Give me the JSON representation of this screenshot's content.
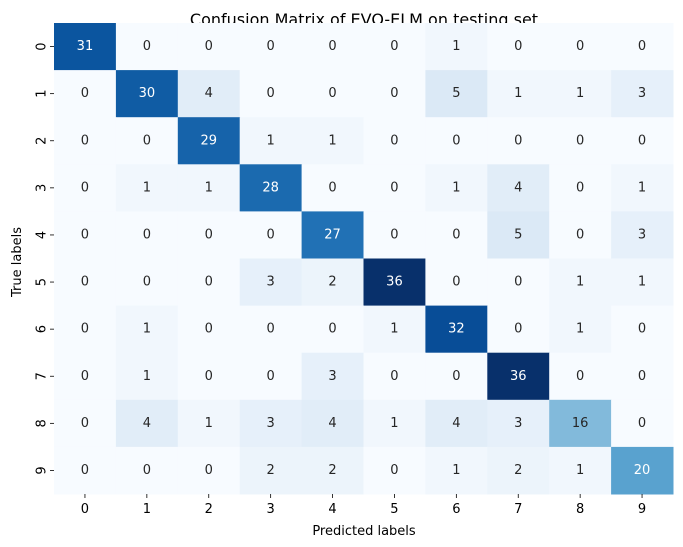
{
  "chart_data": {
    "type": "heatmap",
    "title": "Confusion Matrix of EVO-ELM on testing set",
    "xlabel": "Predicted labels",
    "ylabel": "True labels",
    "x_categories": [
      "0",
      "1",
      "2",
      "3",
      "4",
      "5",
      "6",
      "7",
      "8",
      "9"
    ],
    "y_categories": [
      "0",
      "1",
      "2",
      "3",
      "4",
      "5",
      "6",
      "7",
      "8",
      "9"
    ],
    "values": [
      [
        31,
        0,
        0,
        0,
        0,
        0,
        1,
        0,
        0,
        0
      ],
      [
        0,
        30,
        4,
        0,
        0,
        0,
        5,
        1,
        1,
        3
      ],
      [
        0,
        0,
        29,
        1,
        1,
        0,
        0,
        0,
        0,
        0
      ],
      [
        0,
        1,
        1,
        28,
        0,
        0,
        1,
        4,
        0,
        1
      ],
      [
        0,
        0,
        0,
        0,
        27,
        0,
        0,
        5,
        0,
        3
      ],
      [
        0,
        0,
        0,
        3,
        2,
        36,
        0,
        0,
        1,
        1
      ],
      [
        0,
        1,
        0,
        0,
        0,
        1,
        32,
        0,
        1,
        0
      ],
      [
        0,
        1,
        0,
        0,
        3,
        0,
        0,
        36,
        0,
        0
      ],
      [
        0,
        4,
        1,
        3,
        4,
        1,
        4,
        3,
        16,
        0
      ],
      [
        0,
        0,
        0,
        2,
        2,
        0,
        1,
        2,
        1,
        20
      ]
    ],
    "vmin": 0,
    "vmax": 36,
    "colormap": [
      "#f7fbff",
      "#deebf7",
      "#c6dbef",
      "#9ecae1",
      "#6baed6",
      "#4292c6",
      "#2171b5",
      "#08519c",
      "#08306b"
    ],
    "colorbar": false
  }
}
